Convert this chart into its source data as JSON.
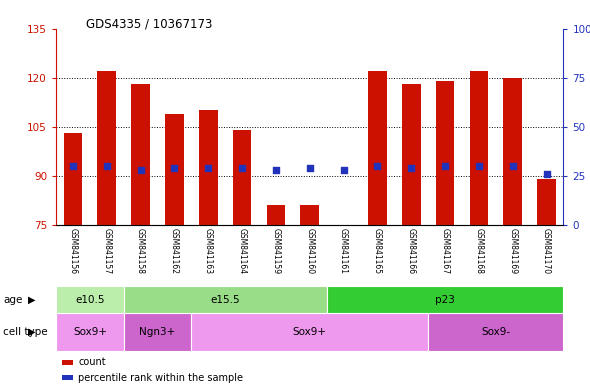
{
  "title": "GDS4335 / 10367173",
  "samples": [
    "GSM841156",
    "GSM841157",
    "GSM841158",
    "GSM841162",
    "GSM841163",
    "GSM841164",
    "GSM841159",
    "GSM841160",
    "GSM841161",
    "GSM841165",
    "GSM841166",
    "GSM841167",
    "GSM841168",
    "GSM841169",
    "GSM841170"
  ],
  "counts": [
    103,
    122,
    118,
    109,
    110,
    104,
    81,
    81,
    75,
    122,
    118,
    119,
    122,
    120,
    89
  ],
  "percentiles": [
    30,
    30,
    28,
    29,
    29,
    29,
    28,
    29,
    28,
    30,
    29,
    30,
    30,
    30,
    26
  ],
  "ylim_left": [
    75,
    135
  ],
  "ylim_right": [
    0,
    100
  ],
  "yticks_left": [
    75,
    90,
    105,
    120,
    135
  ],
  "yticks_right": [
    0,
    25,
    50,
    75,
    100
  ],
  "bar_color": "#CC1100",
  "dot_color": "#2233BB",
  "age_groups": [
    {
      "label": "e10.5",
      "start": 0,
      "end": 2,
      "color": "#BBEEAA"
    },
    {
      "label": "e15.5",
      "start": 2,
      "end": 8,
      "color": "#99DD88"
    },
    {
      "label": "p23",
      "start": 8,
      "end": 15,
      "color": "#33CC33"
    }
  ],
  "cell_type_groups": [
    {
      "label": "Sox9+",
      "start": 0,
      "end": 2,
      "color": "#EE99EE"
    },
    {
      "label": "Ngn3+",
      "start": 2,
      "end": 4,
      "color": "#CC66CC"
    },
    {
      "label": "Sox9+",
      "start": 4,
      "end": 11,
      "color": "#EE99EE"
    },
    {
      "label": "Sox9-",
      "start": 11,
      "end": 15,
      "color": "#CC66CC"
    }
  ],
  "legend_count_label": "count",
  "legend_pct_label": "percentile rank within the sample",
  "base_value": 75,
  "grid_yticks": [
    90,
    105,
    120
  ],
  "bg_color": "#C8C8C8",
  "fig_bg": "#FFFFFF"
}
